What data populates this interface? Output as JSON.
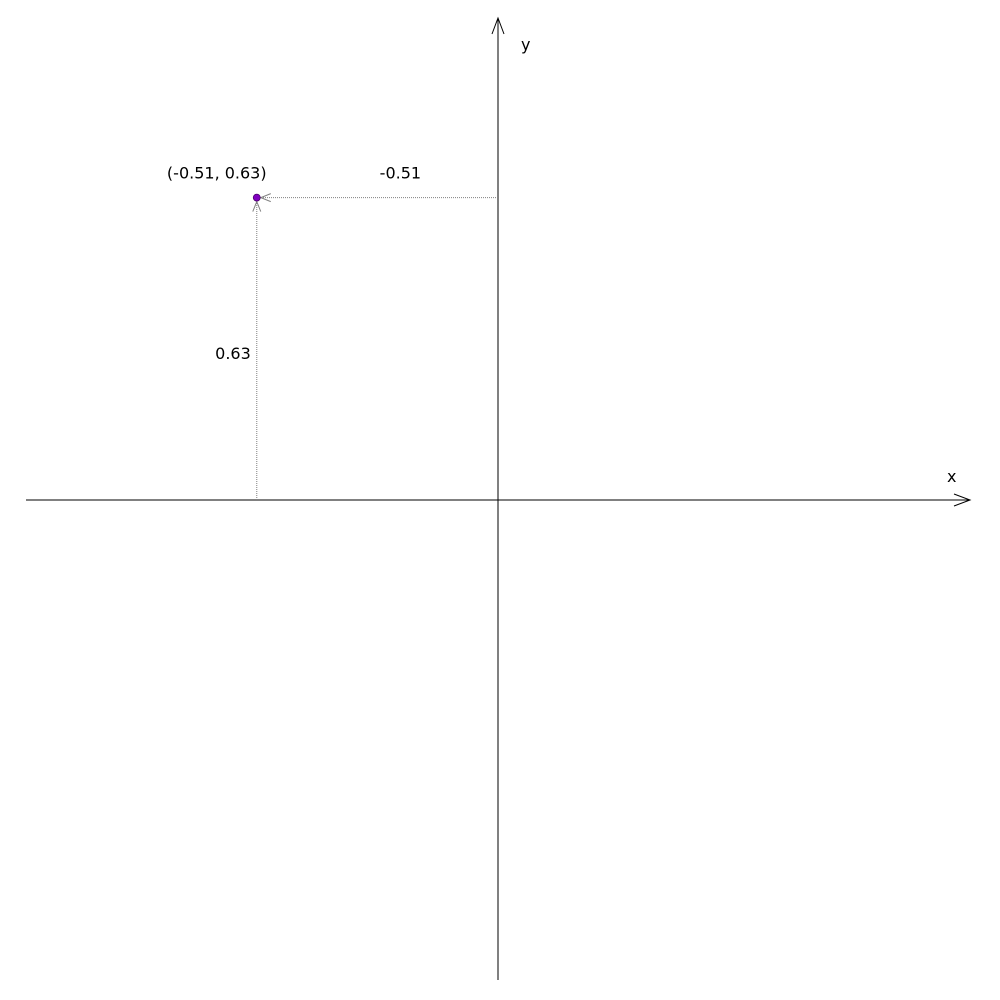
{
  "chart_data": {
    "type": "scatter",
    "x_axis_label": "x",
    "y_axis_label": "y",
    "xlim": [
      -1,
      1
    ],
    "ylim": [
      -1,
      1
    ],
    "grid": false,
    "point": {
      "x": -0.51,
      "y": 0.63,
      "label": "(-0.51, 0.63)",
      "x_projection_label": "-0.51",
      "y_projection_label": "0.63",
      "color": "#8000c0"
    },
    "axis_color": "#000000",
    "projection_color": "#808080"
  }
}
